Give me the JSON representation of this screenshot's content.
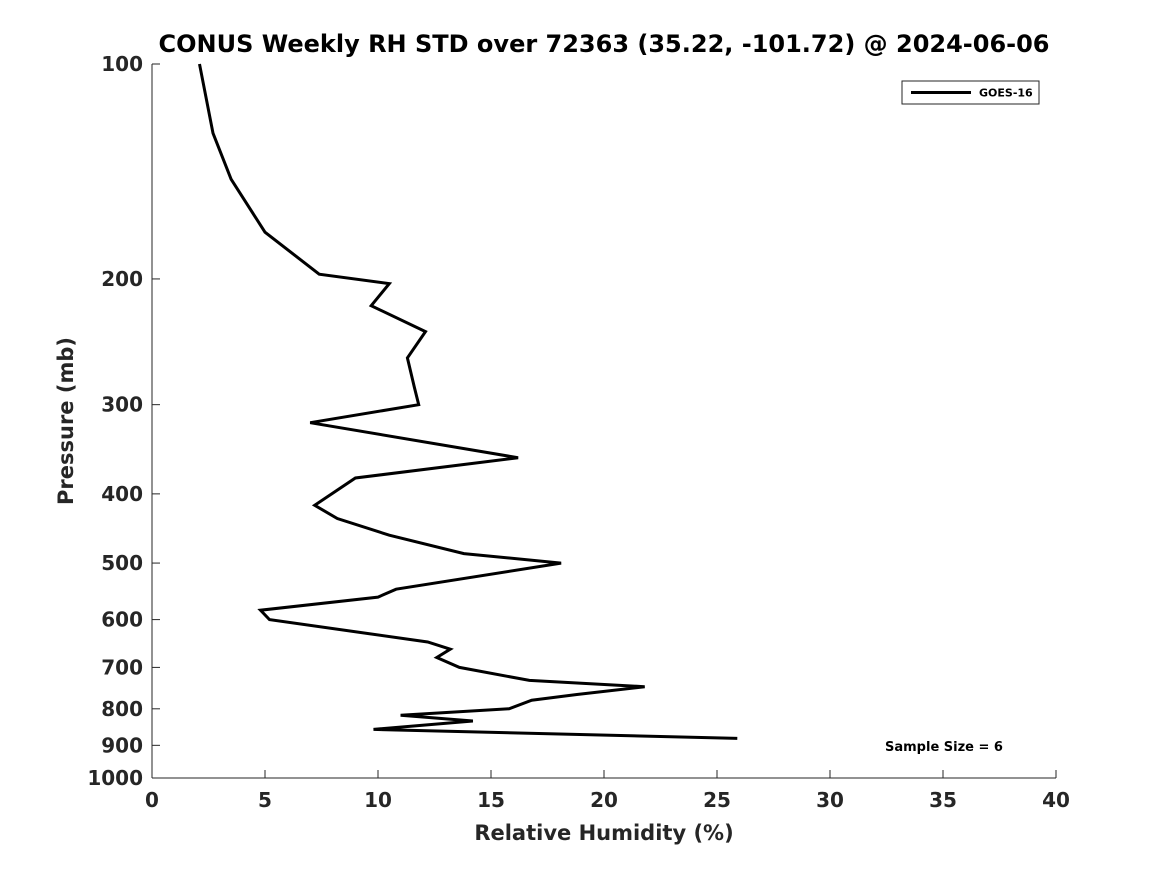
{
  "chart_data": {
    "type": "line",
    "title": "CONUS Weekly RH STD over 72363 (35.22, -101.72) @ 2024-06-06",
    "xlabel": "Relative Humidity (%)",
    "ylabel": "Pressure (mb)",
    "xlim": [
      0,
      40
    ],
    "ylim": [
      100,
      1000
    ],
    "y_scale": "log",
    "y_reversed": true,
    "x_ticks": [
      "0",
      "5",
      "10",
      "15",
      "20",
      "25",
      "30",
      "35",
      "40"
    ],
    "y_ticks": [
      "100",
      "200",
      "300",
      "400",
      "500",
      "600",
      "700",
      "800",
      "900",
      "1000"
    ],
    "grid": false,
    "legend": {
      "position": "top-right",
      "entries": [
        "GOES-16"
      ]
    },
    "annotation": "Sample Size = 6",
    "series": [
      {
        "name": "GOES-16",
        "color": "#000000",
        "points": [
          [
            2.1,
            100
          ],
          [
            2.7,
            125
          ],
          [
            3.5,
            145
          ],
          [
            5.0,
            172
          ],
          [
            7.4,
            197
          ],
          [
            10.5,
            203
          ],
          [
            9.7,
            218
          ],
          [
            12.1,
            237
          ],
          [
            11.3,
            258
          ],
          [
            11.6,
            283
          ],
          [
            11.8,
            300
          ],
          [
            7.0,
            318
          ],
          [
            16.2,
            356
          ],
          [
            9.0,
            380
          ],
          [
            7.2,
            415
          ],
          [
            8.2,
            433
          ],
          [
            10.5,
            457
          ],
          [
            13.8,
            485
          ],
          [
            18.1,
            500
          ],
          [
            10.8,
            544
          ],
          [
            10.0,
            558
          ],
          [
            4.8,
            582
          ],
          [
            5.2,
            600
          ],
          [
            12.2,
            645
          ],
          [
            13.2,
            660
          ],
          [
            12.6,
            678
          ],
          [
            13.6,
            700
          ],
          [
            16.7,
            730
          ],
          [
            21.8,
            745
          ],
          [
            18.8,
            764
          ],
          [
            16.8,
            778
          ],
          [
            15.8,
            800
          ],
          [
            11.0,
            817
          ],
          [
            14.2,
            832
          ],
          [
            9.8,
            855
          ],
          [
            25.9,
            880
          ]
        ]
      }
    ]
  }
}
